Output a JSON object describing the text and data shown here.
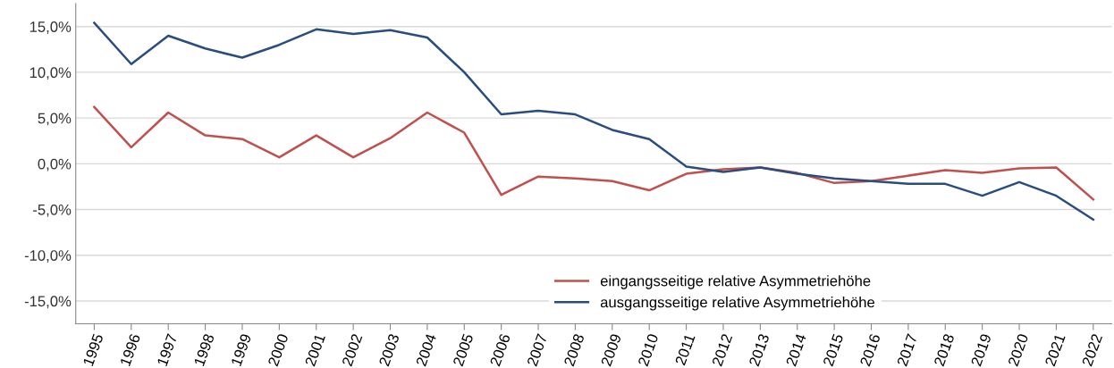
{
  "chart_data": {
    "type": "line",
    "categories": [
      "1995",
      "1996",
      "1997",
      "1998",
      "1999",
      "2000",
      "2001",
      "2002",
      "2003",
      "2004",
      "2005",
      "2006",
      "2007",
      "2008",
      "2009",
      "2010",
      "2011",
      "2012",
      "2013",
      "2014",
      "2015",
      "2016",
      "2017",
      "2018",
      "2019",
      "2020",
      "2021",
      "2022"
    ],
    "series": [
      {
        "name": "eingangsseitige relative Asymmetriehöhe",
        "color": "#c0504d",
        "values": [
          6.2,
          1.8,
          5.6,
          3.1,
          2.7,
          0.7,
          3.1,
          0.7,
          2.8,
          5.6,
          3.4,
          -3.4,
          -1.4,
          -1.6,
          -1.9,
          -2.9,
          -1.1,
          -0.6,
          -0.4,
          -1.0,
          -2.1,
          -1.9,
          -1.3,
          -0.7,
          -1.0,
          -0.5,
          -0.4,
          -3.9
        ]
      },
      {
        "name": "ausgangsseitige relative Asymmetriehöhe",
        "color": "#2a4d80",
        "values": [
          15.4,
          10.9,
          14.0,
          12.6,
          11.6,
          13.0,
          14.7,
          14.2,
          14.6,
          13.8,
          10.0,
          5.4,
          5.8,
          5.4,
          3.7,
          2.7,
          -0.3,
          -0.9,
          -0.4,
          -1.1,
          -1.6,
          -1.9,
          -2.2,
          -2.2,
          -3.5,
          -2.0,
          -3.5,
          -6.1
        ]
      }
    ],
    "ylim": [
      -17.5,
      17.5
    ],
    "yticks": [
      {
        "value": -15,
        "label": "-15,0%"
      },
      {
        "value": -10,
        "label": "-10,0%"
      },
      {
        "value": -5,
        "label": "-5,0%"
      },
      {
        "value": 0,
        "label": "0,0%"
      },
      {
        "value": 5,
        "label": "5,0%"
      },
      {
        "value": 10,
        "label": "10,0%"
      },
      {
        "value": 15,
        "label": "15,0%"
      }
    ],
    "grid": "y",
    "legend": "bottom",
    "marker": "none",
    "line_style": "solid"
  }
}
